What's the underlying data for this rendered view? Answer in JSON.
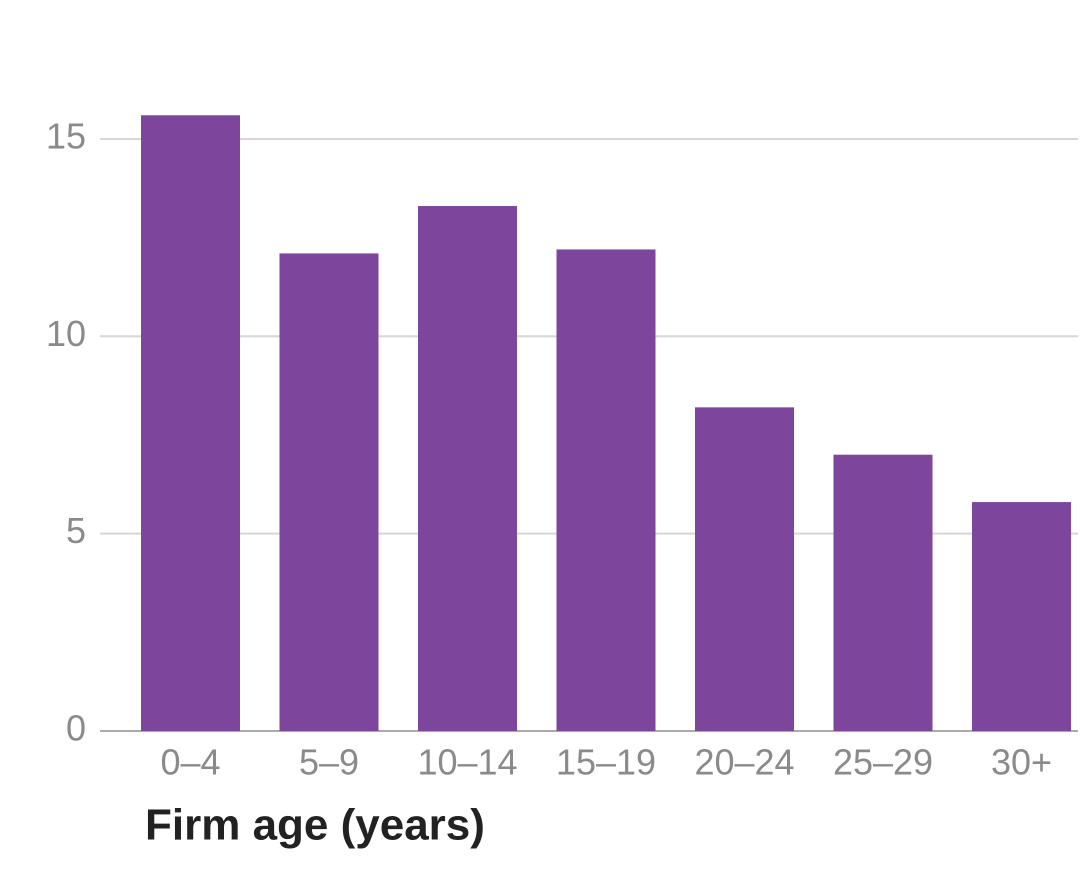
{
  "chart_data": {
    "type": "bar",
    "xlabel": "Firm age (years)",
    "categories": [
      "0–4",
      "5–9",
      "10–14",
      "15–19",
      "20–24",
      "25–29",
      "30+"
    ],
    "values": [
      15.6,
      12.1,
      13.3,
      12.2,
      8.2,
      7.0,
      5.8
    ],
    "color": "#7d469c",
    "ylim": [
      0,
      17
    ],
    "yticks": [
      0,
      5,
      10,
      15
    ],
    "grid": true
  }
}
